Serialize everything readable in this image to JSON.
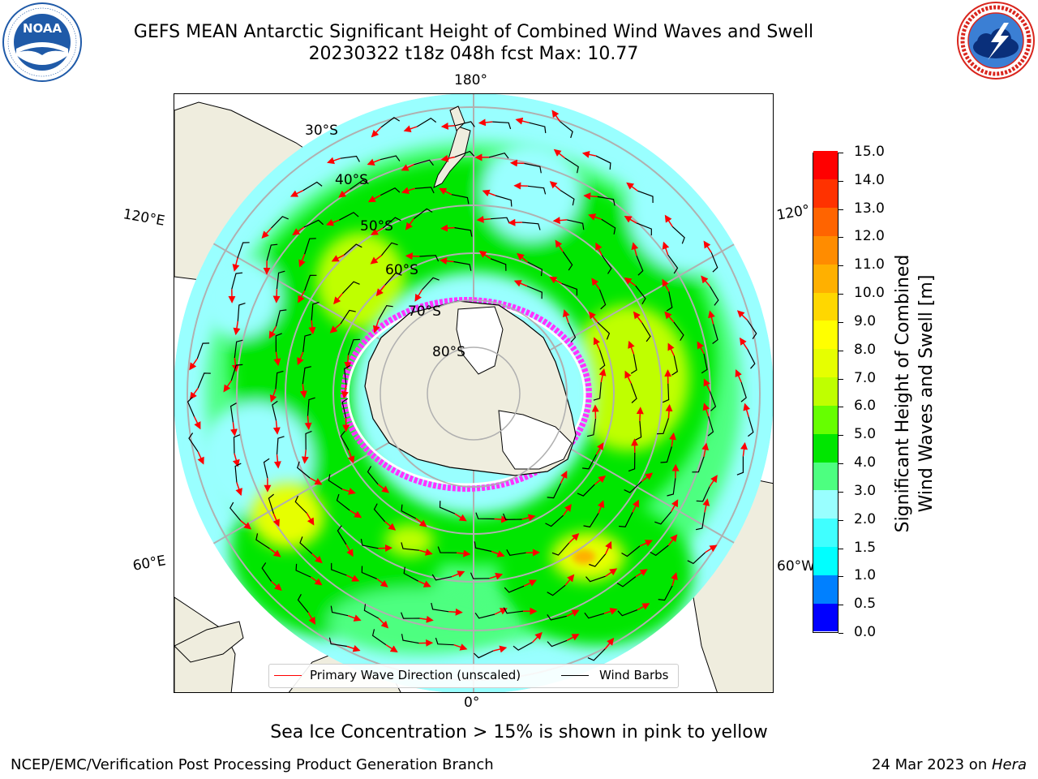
{
  "title": {
    "line1": "GEFS MEAN Antarctic Significant Height of Combined Wind Waves and Swell",
    "line2": "20230322 t18z 048h fcst   Max: 10.77"
  },
  "logos": {
    "left": {
      "icon": "noaa-logo",
      "text": "NOAA",
      "ring_text": "NATIONAL OCEANIC AND ATMOSPHERIC ADMINISTRATION · U.S. DEPARTMENT OF COMMERCE"
    },
    "right": {
      "icon": "nws-logo",
      "ring_text": "NATIONAL WEATHER SERVICE"
    }
  },
  "map": {
    "projection": "south-polar stereographic",
    "longitude_labels": {
      "top": "180°",
      "bottom": "0°",
      "upper_left": "120°E",
      "upper_right": "120°",
      "lower_left": "60°E",
      "lower_right": "60°W"
    },
    "latitude_labels": [
      "30°S",
      "40°S",
      "50°S",
      "60°S",
      "70°S",
      "80°S"
    ],
    "colors": {
      "land": "#efedde",
      "ocean_low": "#99ffff",
      "ocean_mid": "#00e600",
      "ocean_high": "#ffff00",
      "sea_ice": "#ff33ff",
      "grid": "#b0b0b0",
      "wave_arrow": "#ff0000",
      "wind_barb": "#000000"
    }
  },
  "legend": {
    "wave_direction": "Primary Wave Direction (unscaled)",
    "wind_barbs": "Wind Barbs"
  },
  "colorbar": {
    "label_line1": "Significant Height of Combined",
    "label_line2": "Wind Waves and Swell [m]",
    "ticks": [
      "0.0",
      "0.5",
      "1.0",
      "1.5",
      "2.0",
      "3.0",
      "4.0",
      "5.0",
      "6.0",
      "7.0",
      "8.0",
      "9.0",
      "10.0",
      "11.0",
      "12.0",
      "13.0",
      "14.0",
      "15.0"
    ],
    "colors": [
      "#0000ff",
      "#0080ff",
      "#00ffff",
      "#40ffff",
      "#99ffff",
      "#4dff80",
      "#00e600",
      "#66ff00",
      "#bfff00",
      "#e6ff00",
      "#ffff00",
      "#ffd700",
      "#ffb000",
      "#ff8c00",
      "#ff6400",
      "#ff3200",
      "#ff0000"
    ]
  },
  "footnote": "Sea Ice Concentration > 15% is shown in pink to yellow",
  "credit": "NCEP/EMC/Verification Post Processing Product Generation Branch",
  "datestamp": {
    "prefix": "24 Mar 2023 on ",
    "machine": "Hera"
  }
}
